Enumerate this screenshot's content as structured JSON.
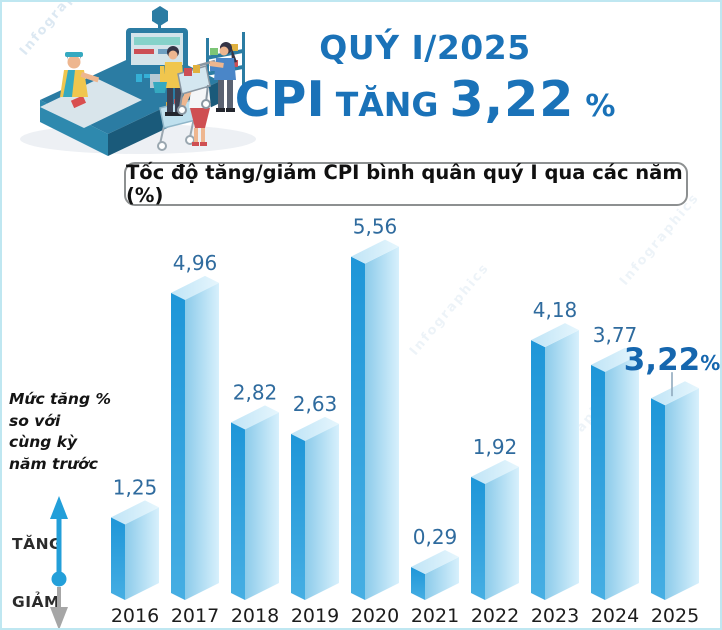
{
  "header": {
    "quarter": "QUÝ I/2025",
    "cpi_label": "CPI",
    "cpi_verb": "TĂNG",
    "cpi_value": "3,22",
    "cpi_unit": "%"
  },
  "chart_box_title": "Tốc độ tăng/giảm CPI bình quân quý I qua các năm (%)",
  "side_note": {
    "lines": [
      "Mức tăng %",
      "so với",
      "cùng kỳ",
      "năm trước"
    ]
  },
  "legend": {
    "up": "TĂNG",
    "down": "GIẢM"
  },
  "watermark": "Infographics",
  "colors": {
    "accent_blue": "#1a72b8",
    "value_label": "#2f6b9e",
    "highlight_label": "#1566ae",
    "year_label": "#1c1c1c",
    "bar_left_top": "#1e96d8",
    "bar_left_bottom": "#46aee3",
    "bar_front_left": "#8ccbea",
    "bar_front_right": "#d7f0fc",
    "bar_top_left": "#bfe4f6",
    "bar_top_right": "#e6f6fd",
    "pointer_line": "#8fa9bd",
    "arrow_up": "#239fd9",
    "arrow_down": "#a6a6a6"
  },
  "chart_data": {
    "type": "bar",
    "title": "Tốc độ tăng/giảm CPI bình quân quý I qua các năm (%)",
    "categories": [
      "2016",
      "2017",
      "2018",
      "2019",
      "2020",
      "2021",
      "2022",
      "2023",
      "2024",
      "2025"
    ],
    "values": [
      1.25,
      4.96,
      2.82,
      2.63,
      5.56,
      0.29,
      1.92,
      4.18,
      3.77,
      3.22
    ],
    "value_labels": [
      "1,25",
      "4,96",
      "2,82",
      "2,63",
      "5,56",
      "0,29",
      "1,92",
      "4,18",
      "3,77",
      "3,22%"
    ],
    "highlight_index": 9,
    "unit": "%",
    "xlabel": "",
    "ylabel": "Mức tăng % so với cùng kỳ năm trước",
    "ylim": [
      0,
      6
    ],
    "grid": false,
    "legend_position": "none"
  }
}
